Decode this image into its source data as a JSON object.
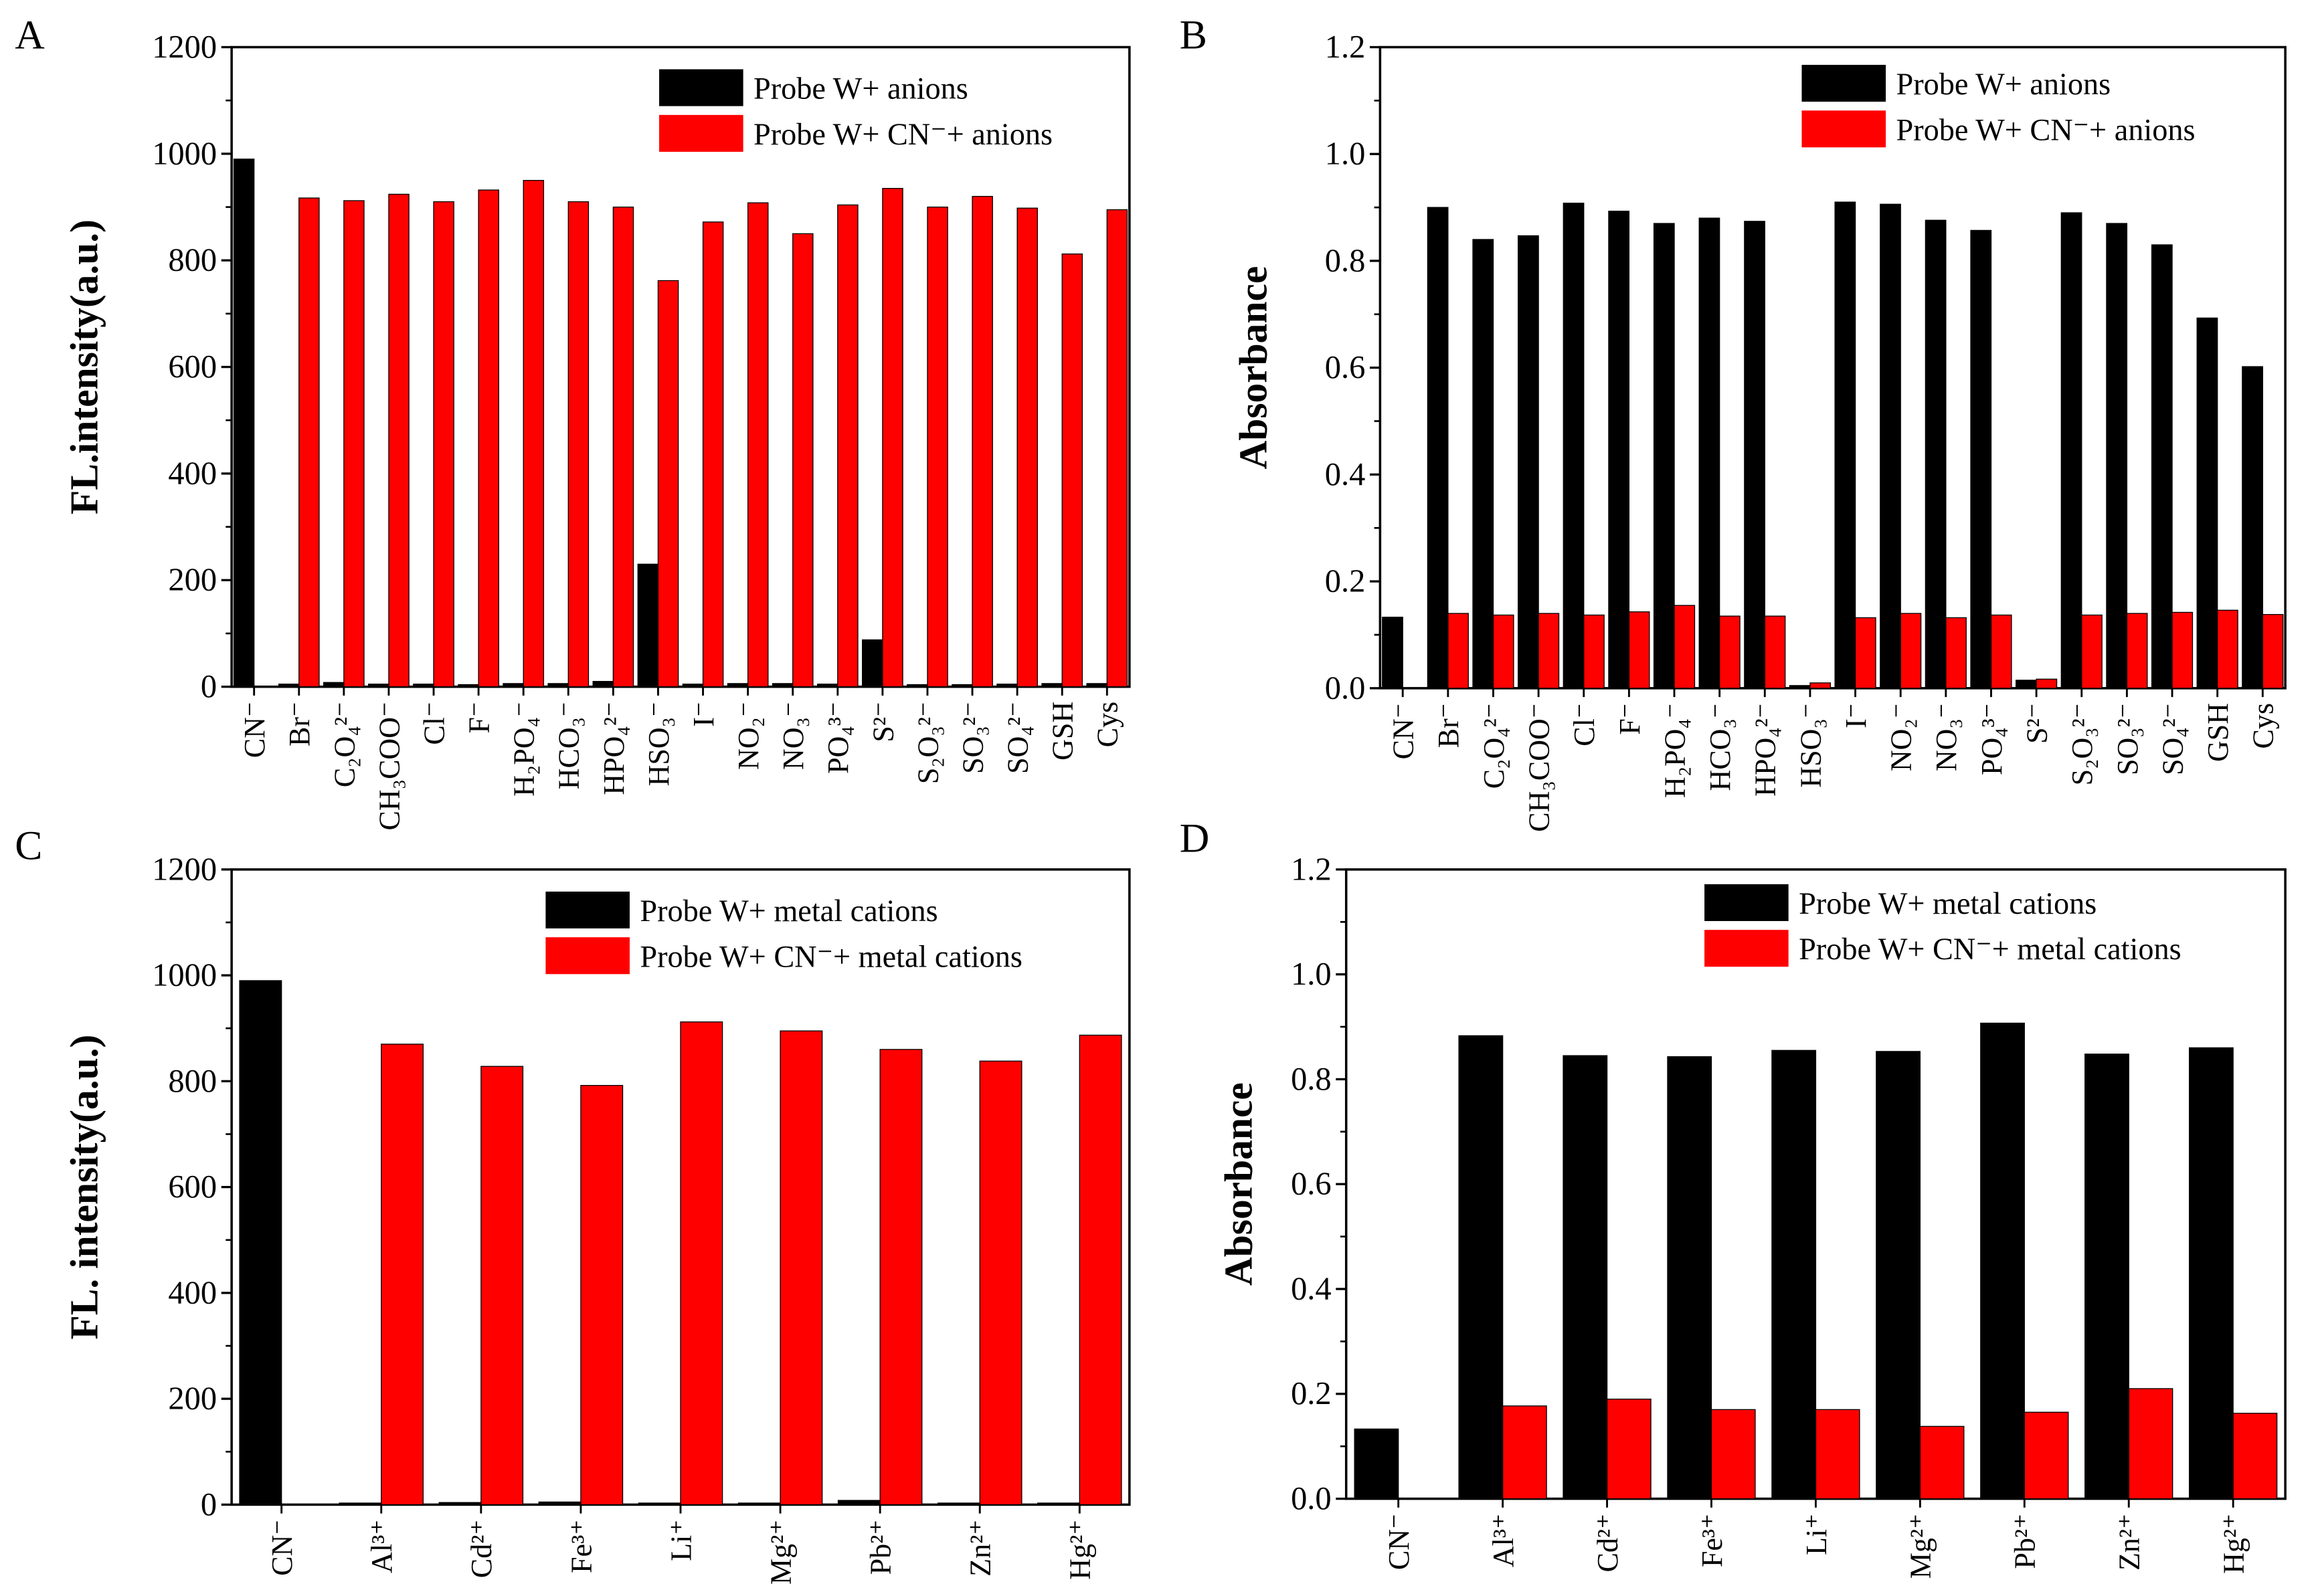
{
  "chart_data": [
    {
      "type": "bar",
      "panel": "A",
      "ylabel": "FL.intensity(a.u.)",
      "ylim": [
        0,
        1200
      ],
      "yticks": [
        "0",
        "200",
        "400",
        "600",
        "800",
        "1000",
        "1200"
      ],
      "ytick_values": [
        0,
        200,
        400,
        600,
        800,
        1000,
        1200
      ],
      "legend_position": "top-right",
      "categories": [
        "CN⁻",
        "Br⁻",
        "C₂O₄²⁻",
        "CH₃COO⁻",
        "Cl⁻",
        "F⁻",
        "H₂PO₄⁻",
        "HCO₃⁻",
        "HPO₄²⁻",
        "HSO₃⁻",
        "I⁻",
        "NO₂⁻",
        "NO₃⁻",
        "PO₄³⁻",
        "S²⁻",
        "S₂O₃²⁻",
        "SO₃²⁻",
        "SO₄²⁻",
        "GSH",
        "Cys"
      ],
      "series": [
        {
          "name": "Probe W+ anions",
          "color": "#000000",
          "values": [
            990,
            5,
            8,
            5,
            5,
            4,
            6,
            6,
            10,
            230,
            5,
            6,
            6,
            5,
            88,
            4,
            4,
            5,
            6,
            6
          ]
        },
        {
          "name": "Probe W+ CN⁻+ anions",
          "color": "#ff0000",
          "values": [
            0,
            917,
            912,
            924,
            910,
            932,
            950,
            910,
            900,
            762,
            872,
            908,
            850,
            904,
            935,
            900,
            920,
            898,
            812,
            895
          ]
        }
      ]
    },
    {
      "type": "bar",
      "panel": "B",
      "ylabel": "Absorbance",
      "ylim": [
        0,
        1.2
      ],
      "yticks": [
        "0.0",
        "0.2",
        "0.4",
        "0.6",
        "0.8",
        "1.0",
        "1.2"
      ],
      "ytick_values": [
        0,
        0.2,
        0.4,
        0.6,
        0.8,
        1.0,
        1.2
      ],
      "legend_position": "top-right",
      "categories": [
        "CN⁻",
        "Br⁻",
        "C₂O₄²⁻",
        "CH₃COO⁻",
        "Cl⁻",
        "F⁻",
        "H₂PO₄⁻",
        "HCO₃⁻",
        "HPO₄²⁻",
        "HSO₃⁻",
        "I⁻",
        "NO₂⁻",
        "NO₃⁻",
        "PO₄³⁻",
        "S²⁻",
        "S₂O₃²⁻",
        "SO₃²⁻",
        "SO₄²⁻",
        "GSH",
        "Cys"
      ],
      "series": [
        {
          "name": "Probe W+ anions",
          "color": "#000000",
          "values": [
            0.133,
            0.9,
            0.84,
            0.847,
            0.908,
            0.893,
            0.87,
            0.88,
            0.874,
            0.005,
            0.91,
            0.906,
            0.876,
            0.857,
            0.015,
            0.89,
            0.87,
            0.83,
            0.693,
            0.602
          ]
        },
        {
          "name": "Probe W+ CN⁻+ anions",
          "color": "#ff0000",
          "values": [
            0,
            0.14,
            0.137,
            0.14,
            0.137,
            0.143,
            0.155,
            0.135,
            0.135,
            0.01,
            0.132,
            0.14,
            0.132,
            0.137,
            0.017,
            0.137,
            0.14,
            0.142,
            0.146,
            0.138
          ]
        }
      ]
    },
    {
      "type": "bar",
      "panel": "C",
      "ylabel": "FL. intensity(a.u.)",
      "ylim": [
        0,
        1200
      ],
      "yticks": [
        "0",
        "200",
        "400",
        "600",
        "800",
        "1000",
        "1200"
      ],
      "ytick_values": [
        0,
        200,
        400,
        600,
        800,
        1000,
        1200
      ],
      "legend_position": "top-right",
      "categories": [
        "CN⁻",
        "Al³⁺",
        "Cd²⁺",
        "Fe³⁺",
        "Li⁺",
        "Mg²⁺",
        "Pb²⁺",
        "Zn²⁺",
        "Hg²⁺"
      ],
      "series": [
        {
          "name": "Probe W+ metal cations",
          "color": "#000000",
          "values": [
            990,
            3,
            4,
            5,
            3,
            3,
            8,
            3,
            3
          ]
        },
        {
          "name": "Probe W+ CN⁻+ metal cations",
          "color": "#ff0000",
          "values": [
            0,
            870,
            828,
            792,
            912,
            895,
            860,
            838,
            887
          ]
        }
      ]
    },
    {
      "type": "bar",
      "panel": "D",
      "ylabel": "Absorbance",
      "ylim": [
        0,
        1.2
      ],
      "yticks": [
        "0.0",
        "0.2",
        "0.4",
        "0.6",
        "0.8",
        "1.0",
        "1.2"
      ],
      "ytick_values": [
        0,
        0.2,
        0.4,
        0.6,
        0.8,
        1.0,
        1.2
      ],
      "legend_position": "top-right",
      "categories": [
        "CN⁻",
        "Al³⁺",
        "Cd²⁺",
        "Fe³⁺",
        "Li⁺",
        "Mg²⁺",
        "Pb²⁺",
        "Zn²⁺",
        "Hg²⁺"
      ],
      "series": [
        {
          "name": "Probe W+ metal cations",
          "color": "#000000",
          "values": [
            0.133,
            0.883,
            0.845,
            0.843,
            0.855,
            0.853,
            0.907,
            0.848,
            0.86
          ]
        },
        {
          "name": "Probe W+ CN⁻+ metal cations",
          "color": "#ff0000",
          "values": [
            0,
            0.177,
            0.19,
            0.17,
            0.17,
            0.138,
            0.165,
            0.21,
            0.163
          ]
        }
      ]
    }
  ]
}
